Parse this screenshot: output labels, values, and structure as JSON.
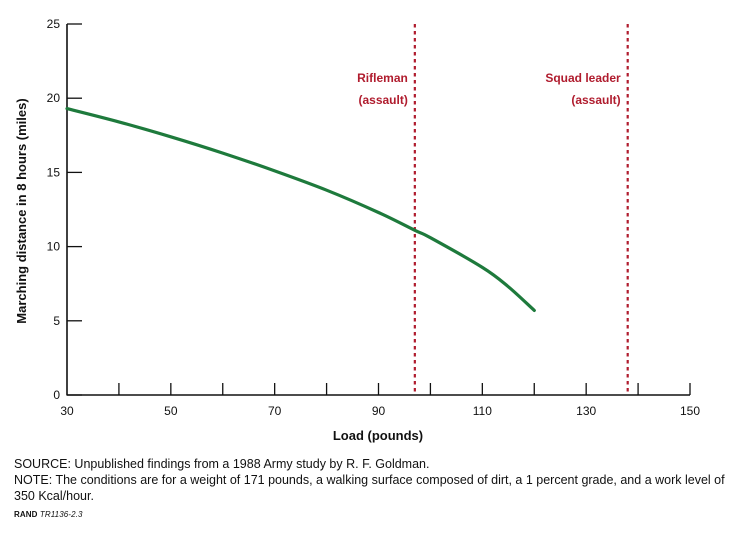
{
  "chart_data": {
    "type": "line",
    "xlabel": "Load (pounds)",
    "ylabel": "Marching distance in 8 hours (miles)",
    "xlim": [
      30,
      150
    ],
    "ylim": [
      0,
      25
    ],
    "x_ticks_labeled": [
      30,
      50,
      70,
      90,
      110,
      130,
      150
    ],
    "x_ticks_minor": [
      40,
      60,
      80,
      100,
      120,
      140
    ],
    "y_ticks": [
      0,
      5,
      10,
      15,
      20,
      25
    ],
    "grid": false,
    "series": [
      {
        "name": "Marching distance",
        "color": "#1e7a3c",
        "x": [
          30,
          40,
          50,
          60,
          70,
          80,
          90,
          97,
          100,
          110,
          115,
          120
        ],
        "y": [
          19.3,
          18.4,
          17.4,
          16.3,
          15.1,
          13.8,
          12.3,
          11.1,
          10.6,
          8.6,
          7.3,
          5.7
        ]
      }
    ],
    "reference_lines": [
      {
        "x": 97,
        "label_line1": "Rifleman",
        "label_line2": "(assault)",
        "color": "#b01c2e"
      },
      {
        "x": 138,
        "label_line1": "Squad leader",
        "label_line2": "(assault)",
        "color": "#b01c2e"
      }
    ]
  },
  "notes": {
    "source": "SOURCE: Unpublished findings from a 1988 Army study by R. F. Goldman.",
    "note": "NOTE: The conditions are for a weight of 171 pounds, a walking surface composed of dirt, a 1 percent grade, and a work level of 350 Kcal/hour.",
    "rand_org": "RAND",
    "rand_id": "TR1136-2.3"
  }
}
